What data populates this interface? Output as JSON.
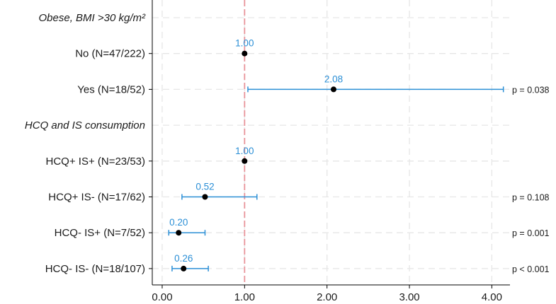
{
  "colors": {
    "ci": "#2b8fd6",
    "estimate_text": "#2b8fd6",
    "point": "#000000",
    "reference_line": "#e8949a",
    "grid": "#e6e6e6",
    "axis": "#000000"
  },
  "chart_data": {
    "type": "forest",
    "title": "",
    "xlabel": "",
    "xlim": [
      -0.12,
      4.22
    ],
    "x_ticks": [
      0,
      1,
      2,
      3,
      4
    ],
    "x_tick_labels": [
      "0.00",
      "1.00",
      "2.00",
      "3.00",
      "4.00"
    ],
    "reference_value": 1,
    "rows": [
      {
        "kind": "group",
        "label": "Obese, BMI >30 kg/m²"
      },
      {
        "kind": "item",
        "label": "No (N=47/222)",
        "estimate": 1.0,
        "estimate_label": "1.00",
        "ci_low": null,
        "ci_high": null,
        "p": ""
      },
      {
        "kind": "item",
        "label": "Yes (N=18/52)",
        "estimate": 2.08,
        "estimate_label": "2.08",
        "ci_low": 1.04,
        "ci_high": 4.14,
        "p": "p = 0.038"
      },
      {
        "kind": "group",
        "label": "HCQ and IS consumption"
      },
      {
        "kind": "item",
        "label": "HCQ+ IS+ (N=23/53)",
        "estimate": 1.0,
        "estimate_label": "1.00",
        "ci_low": null,
        "ci_high": null,
        "p": ""
      },
      {
        "kind": "item",
        "label": "HCQ+ IS- (N=17/62)",
        "estimate": 0.52,
        "estimate_label": "0.52",
        "ci_low": 0.24,
        "ci_high": 1.15,
        "p": "p = 0.108"
      },
      {
        "kind": "item",
        "label": "HCQ- IS+ (N=7/52)",
        "estimate": 0.2,
        "estimate_label": "0.20",
        "ci_low": 0.08,
        "ci_high": 0.52,
        "p": "p = 0.001"
      },
      {
        "kind": "item",
        "label": "HCQ- IS- (N=18/107)",
        "estimate": 0.26,
        "estimate_label": "0.26",
        "ci_low": 0.12,
        "ci_high": 0.56,
        "p": "p < 0.001"
      }
    ]
  }
}
